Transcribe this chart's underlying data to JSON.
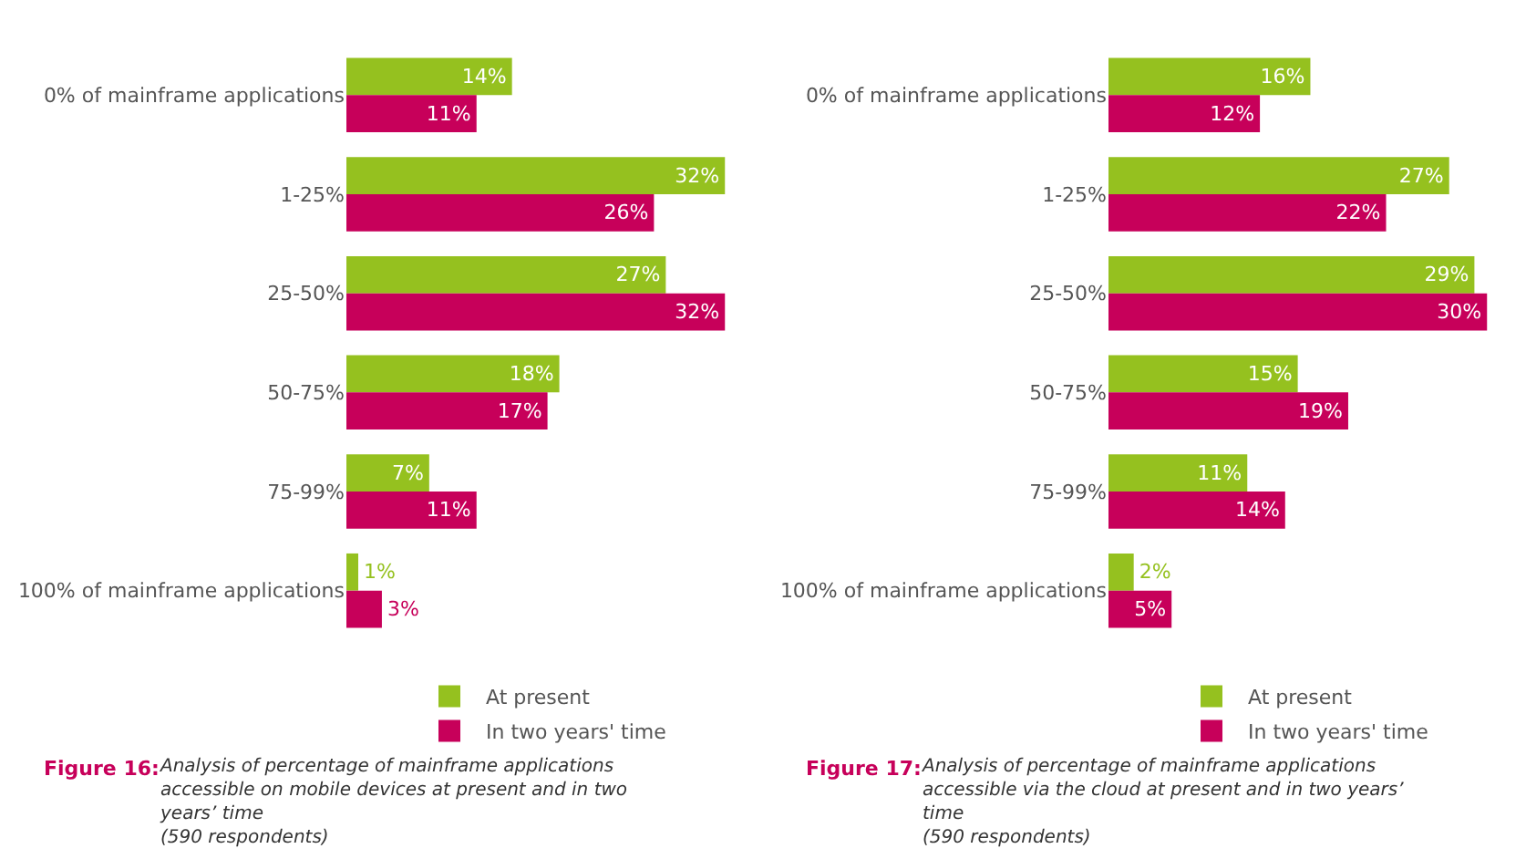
{
  "chart_data": [
    {
      "type": "bar",
      "orientation": "horizontal",
      "categories": [
        "0% of mainframe applications",
        "1-25%",
        "25-50%",
        "50-75%",
        "75-99%",
        "100% of mainframe applications"
      ],
      "legend": "bottom",
      "series": [
        {
          "name": "At present",
          "color": "#95c11f",
          "values": [
            14,
            32,
            27,
            18,
            7,
            1
          ],
          "value_labels": [
            "14%",
            "32%",
            "27%",
            "18%",
            "7%",
            "1%"
          ]
        },
        {
          "name": "In two years' time",
          "color": "#c7005a",
          "values": [
            11,
            26,
            32,
            17,
            11,
            3
          ],
          "value_labels": [
            "11%",
            "26%",
            "32%",
            "17%",
            "11%",
            "3%"
          ]
        }
      ],
      "annotations": [
        "Figure 16:",
        "Analysis of percentage of mainframe applications\naccessible on mobile devices at present and in two\nyears’ time\n(590 respondents)"
      ]
    },
    {
      "type": "bar",
      "orientation": "horizontal",
      "categories": [
        "0% of mainframe applications",
        "1-25%",
        "25-50%",
        "50-75%",
        "75-99%",
        "100% of mainframe applications"
      ],
      "legend": "bottom",
      "series": [
        {
          "name": "At present",
          "color": "#95c11f",
          "values": [
            16,
            27,
            29,
            15,
            11,
            2
          ],
          "value_labels": [
            "16%",
            "27%",
            "29%",
            "15%",
            "11%",
            "2%"
          ]
        },
        {
          "name": "In two years' time",
          "color": "#c7005a",
          "values": [
            12,
            22,
            30,
            19,
            14,
            5
          ],
          "value_labels": [
            "12%",
            "22%",
            "30%",
            "19%",
            "14%",
            "5%"
          ]
        }
      ],
      "annotations": [
        "Figure 17:",
        "Analysis of percentage of mainframe applications\naccessible via the cloud at present and in two years’\ntime\n(590 respondents)"
      ]
    }
  ]
}
